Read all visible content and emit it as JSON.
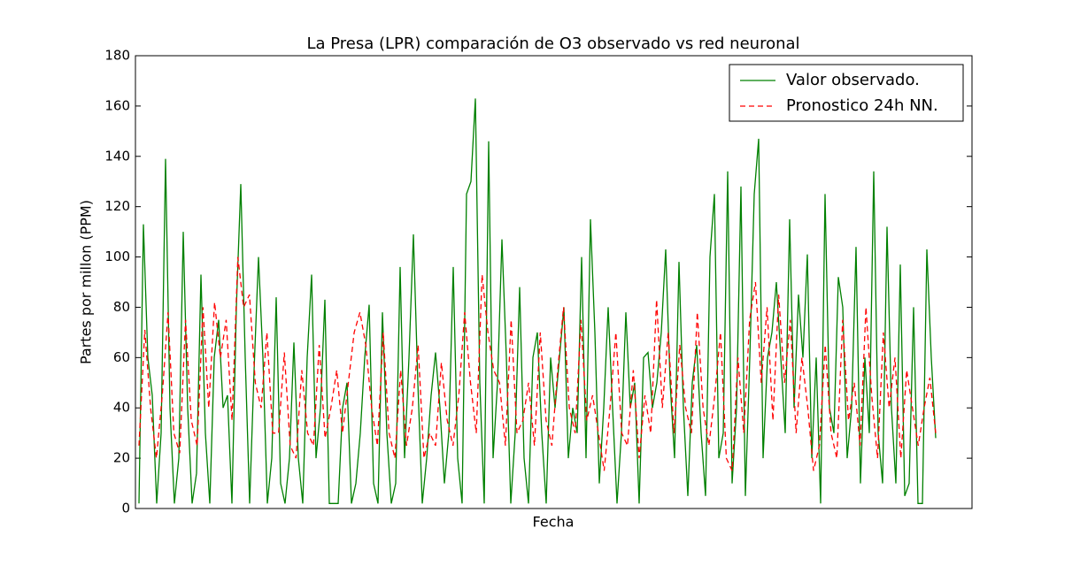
{
  "chart_data": {
    "type": "line",
    "title": "La Presa (LPR) comparación de O3 observado vs red neuronal",
    "xlabel": "Fecha",
    "ylabel": "Partes por millon (PPM)",
    "ylim": [
      0,
      180
    ],
    "yticks": [
      0,
      20,
      40,
      60,
      80,
      100,
      120,
      140,
      160,
      180
    ],
    "legend": "upper right",
    "series": [
      {
        "name": "Valor observado.",
        "color": "#008000",
        "linestyle": "solid",
        "values": [
          2,
          113,
          60,
          45,
          2,
          30,
          139,
          40,
          2,
          20,
          110,
          40,
          2,
          14,
          93,
          30,
          2,
          60,
          75,
          40,
          45,
          2,
          80,
          129,
          60,
          2,
          55,
          100,
          60,
          2,
          20,
          84,
          10,
          2,
          20,
          66,
          20,
          2,
          60,
          93,
          20,
          40,
          83,
          2,
          2,
          2,
          40,
          50,
          2,
          10,
          30,
          60,
          81,
          10,
          2,
          78,
          30,
          2,
          10,
          96,
          20,
          60,
          109,
          50,
          2,
          20,
          45,
          62,
          40,
          10,
          30,
          96,
          20,
          2,
          125,
          130,
          163,
          50,
          2,
          146,
          20,
          50,
          107,
          60,
          2,
          30,
          88,
          20,
          2,
          60,
          70,
          30,
          2,
          60,
          40,
          60,
          80,
          20,
          40,
          30,
          100,
          20,
          115,
          70,
          10,
          40,
          80,
          40,
          2,
          30,
          78,
          40,
          50,
          2,
          60,
          62,
          40,
          50,
          70,
          103,
          50,
          20,
          98,
          40,
          5,
          50,
          65,
          30,
          5,
          100,
          125,
          20,
          30,
          134,
          10,
          40,
          128,
          5,
          60,
          125,
          147,
          20,
          60,
          70,
          90,
          60,
          30,
          115,
          40,
          85,
          60,
          101,
          20,
          60,
          2,
          125,
          40,
          30,
          92,
          80,
          20,
          40,
          104,
          10,
          60,
          30,
          134,
          30,
          10,
          112,
          40,
          10,
          97,
          5,
          10,
          80,
          2,
          2,
          103,
          60,
          28
        ]
      },
      {
        "name": "Pronostico 24h NN.",
        "color": "#ff0000",
        "linestyle": "dashed",
        "values": [
          25,
          71,
          40,
          20,
          45,
          78,
          30,
          22,
          75,
          35,
          25,
          80,
          40,
          82,
          60,
          75,
          35,
          100,
          80,
          85,
          50,
          40,
          70,
          30,
          30,
          62,
          25,
          20,
          55,
          30,
          25,
          65,
          28,
          40,
          55,
          30,
          50,
          70,
          78,
          65,
          40,
          25,
          70,
          30,
          20,
          55,
          25,
          40,
          65,
          20,
          30,
          25,
          58,
          35,
          25,
          45,
          78,
          50,
          30,
          93,
          70,
          55,
          50,
          25,
          75,
          30,
          35,
          50,
          25,
          70,
          35,
          25,
          55,
          80,
          40,
          30,
          75,
          35,
          45,
          30,
          15,
          40,
          70,
          30,
          25,
          55,
          20,
          45,
          30,
          83,
          40,
          70,
          30,
          65,
          40,
          30,
          78,
          40,
          25,
          45,
          70,
          20,
          15,
          60,
          30,
          75,
          90,
          50,
          80,
          35,
          85,
          50,
          75,
          30,
          60,
          40,
          15,
          25,
          65,
          30,
          20,
          75,
          35,
          50,
          25,
          80,
          45,
          20,
          70,
          40,
          60,
          20,
          55,
          40,
          25,
          40,
          52,
          30
        ]
      }
    ]
  }
}
